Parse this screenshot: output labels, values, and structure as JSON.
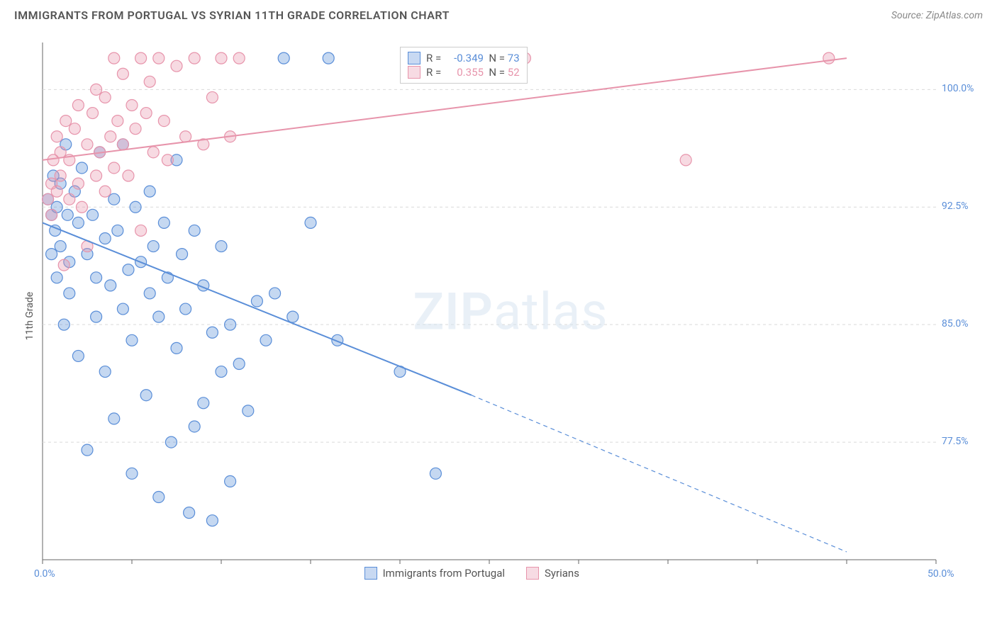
{
  "title": "IMMIGRANTS FROM PORTUGAL VS SYRIAN 11TH GRADE CORRELATION CHART",
  "source": "Source: ZipAtlas.com",
  "watermark_a": "ZIP",
  "watermark_b": "atlas",
  "y_axis_label": "11th Grade",
  "chart": {
    "type": "scatter",
    "background_color": "#ffffff",
    "grid_color": "#d9d9d9",
    "xlim": [
      0,
      50
    ],
    "ylim": [
      70,
      103
    ],
    "x_ticks": [
      0,
      5,
      10,
      15,
      20,
      25,
      30,
      35,
      40,
      45,
      50
    ],
    "x_tick_labels": {
      "0": "0.0%",
      "50": "50.0%"
    },
    "y_ticks": [
      77.5,
      85.0,
      92.5,
      100.0
    ],
    "y_tick_labels": {
      "77.5": "77.5%",
      "85.0": "85.0%",
      "92.5": "92.5%",
      "100.0": "100.0%"
    },
    "marker_radius": 8,
    "marker_fill_opacity": 0.35,
    "marker_stroke_width": 1.2,
    "series": [
      {
        "name": "Immigrants from Portugal",
        "color": "#5a8ed8",
        "R": "-0.349",
        "N": "73",
        "trend": {
          "x1": 0,
          "y1": 91.5,
          "x2": 24,
          "y2": 80.5,
          "x2_dash": 45,
          "y2_dash": 70.5,
          "stroke_width": 2
        },
        "points": [
          [
            0.3,
            93.0
          ],
          [
            0.5,
            92.0
          ],
          [
            0.5,
            89.5
          ],
          [
            0.6,
            94.5
          ],
          [
            0.7,
            91.0
          ],
          [
            0.8,
            92.5
          ],
          [
            0.8,
            88.0
          ],
          [
            1.0,
            94.0
          ],
          [
            1.0,
            90.0
          ],
          [
            1.2,
            85.0
          ],
          [
            1.3,
            96.5
          ],
          [
            1.4,
            92.0
          ],
          [
            1.5,
            89.0
          ],
          [
            1.5,
            87.0
          ],
          [
            1.8,
            93.5
          ],
          [
            2.0,
            91.5
          ],
          [
            2.0,
            83.0
          ],
          [
            2.2,
            95.0
          ],
          [
            2.5,
            89.5
          ],
          [
            2.5,
            77.0
          ],
          [
            2.8,
            92.0
          ],
          [
            3.0,
            88.0
          ],
          [
            3.0,
            85.5
          ],
          [
            3.2,
            96.0
          ],
          [
            3.5,
            90.5
          ],
          [
            3.5,
            82.0
          ],
          [
            3.8,
            87.5
          ],
          [
            4.0,
            93.0
          ],
          [
            4.0,
            79.0
          ],
          [
            4.2,
            91.0
          ],
          [
            4.5,
            86.0
          ],
          [
            4.5,
            96.5
          ],
          [
            4.8,
            88.5
          ],
          [
            5.0,
            84.0
          ],
          [
            5.0,
            75.5
          ],
          [
            5.2,
            92.5
          ],
          [
            5.5,
            89.0
          ],
          [
            5.8,
            80.5
          ],
          [
            6.0,
            93.5
          ],
          [
            6.0,
            87.0
          ],
          [
            6.2,
            90.0
          ],
          [
            6.5,
            85.5
          ],
          [
            6.5,
            74.0
          ],
          [
            6.8,
            91.5
          ],
          [
            7.0,
            88.0
          ],
          [
            7.2,
            77.5
          ],
          [
            7.5,
            95.5
          ],
          [
            7.5,
            83.5
          ],
          [
            7.8,
            89.5
          ],
          [
            8.0,
            86.0
          ],
          [
            8.2,
            73.0
          ],
          [
            8.5,
            91.0
          ],
          [
            8.5,
            78.5
          ],
          [
            9.0,
            80.0
          ],
          [
            9.0,
            87.5
          ],
          [
            9.5,
            84.5
          ],
          [
            9.5,
            72.5
          ],
          [
            10.0,
            82.0
          ],
          [
            10.0,
            90.0
          ],
          [
            10.5,
            85.0
          ],
          [
            10.5,
            75.0
          ],
          [
            11.0,
            82.5
          ],
          [
            11.5,
            79.5
          ],
          [
            12.0,
            86.5
          ],
          [
            12.5,
            84.0
          ],
          [
            13.0,
            87.0
          ],
          [
            13.5,
            102.0
          ],
          [
            14.0,
            85.5
          ],
          [
            15.0,
            91.5
          ],
          [
            16.0,
            102.0
          ],
          [
            16.5,
            84.0
          ],
          [
            20.0,
            82.0
          ],
          [
            22.0,
            75.5
          ]
        ]
      },
      {
        "name": "Syrians",
        "color": "#e794ab",
        "R": "0.355",
        "N": "52",
        "trend": {
          "x1": 0,
          "y1": 95.5,
          "x2": 45,
          "y2": 102.0,
          "stroke_width": 2
        },
        "points": [
          [
            0.3,
            93.0
          ],
          [
            0.5,
            94.0
          ],
          [
            0.5,
            92.0
          ],
          [
            0.6,
            95.5
          ],
          [
            0.8,
            93.5
          ],
          [
            0.8,
            97.0
          ],
          [
            1.0,
            94.5
          ],
          [
            1.0,
            96.0
          ],
          [
            1.2,
            88.8
          ],
          [
            1.3,
            98.0
          ],
          [
            1.5,
            93.0
          ],
          [
            1.5,
            95.5
          ],
          [
            1.8,
            97.5
          ],
          [
            2.0,
            94.0
          ],
          [
            2.0,
            99.0
          ],
          [
            2.2,
            92.5
          ],
          [
            2.5,
            96.5
          ],
          [
            2.5,
            90.0
          ],
          [
            2.8,
            98.5
          ],
          [
            3.0,
            94.5
          ],
          [
            3.0,
            100.0
          ],
          [
            3.2,
            96.0
          ],
          [
            3.5,
            93.5
          ],
          [
            3.5,
            99.5
          ],
          [
            3.8,
            97.0
          ],
          [
            4.0,
            102.0
          ],
          [
            4.0,
            95.0
          ],
          [
            4.2,
            98.0
          ],
          [
            4.5,
            96.5
          ],
          [
            4.5,
            101.0
          ],
          [
            4.8,
            94.5
          ],
          [
            5.0,
            99.0
          ],
          [
            5.2,
            97.5
          ],
          [
            5.5,
            102.0
          ],
          [
            5.5,
            91.0
          ],
          [
            5.8,
            98.5
          ],
          [
            6.0,
            100.5
          ],
          [
            6.2,
            96.0
          ],
          [
            6.5,
            102.0
          ],
          [
            6.8,
            98.0
          ],
          [
            7.0,
            95.5
          ],
          [
            7.5,
            101.5
          ],
          [
            8.0,
            97.0
          ],
          [
            8.5,
            102.0
          ],
          [
            9.0,
            96.5
          ],
          [
            9.5,
            99.5
          ],
          [
            10.0,
            102.0
          ],
          [
            10.5,
            97.0
          ],
          [
            11.0,
            102.0
          ],
          [
            27.0,
            102.0
          ],
          [
            36.0,
            95.5
          ],
          [
            44.0,
            102.0
          ]
        ]
      }
    ]
  },
  "legend_top": {
    "rows": [
      {
        "color": "#5a8ed8",
        "r_label": "R =",
        "r": "-0.349",
        "n_label": "N =",
        "n": "73"
      },
      {
        "color": "#e794ab",
        "r_label": "R =",
        "r": "0.355",
        "n_label": "N =",
        "n": "52"
      }
    ]
  },
  "legend_bottom": {
    "items": [
      {
        "color": "#5a8ed8",
        "label": "Immigrants from Portugal"
      },
      {
        "color": "#e794ab",
        "label": "Syrians"
      }
    ]
  }
}
